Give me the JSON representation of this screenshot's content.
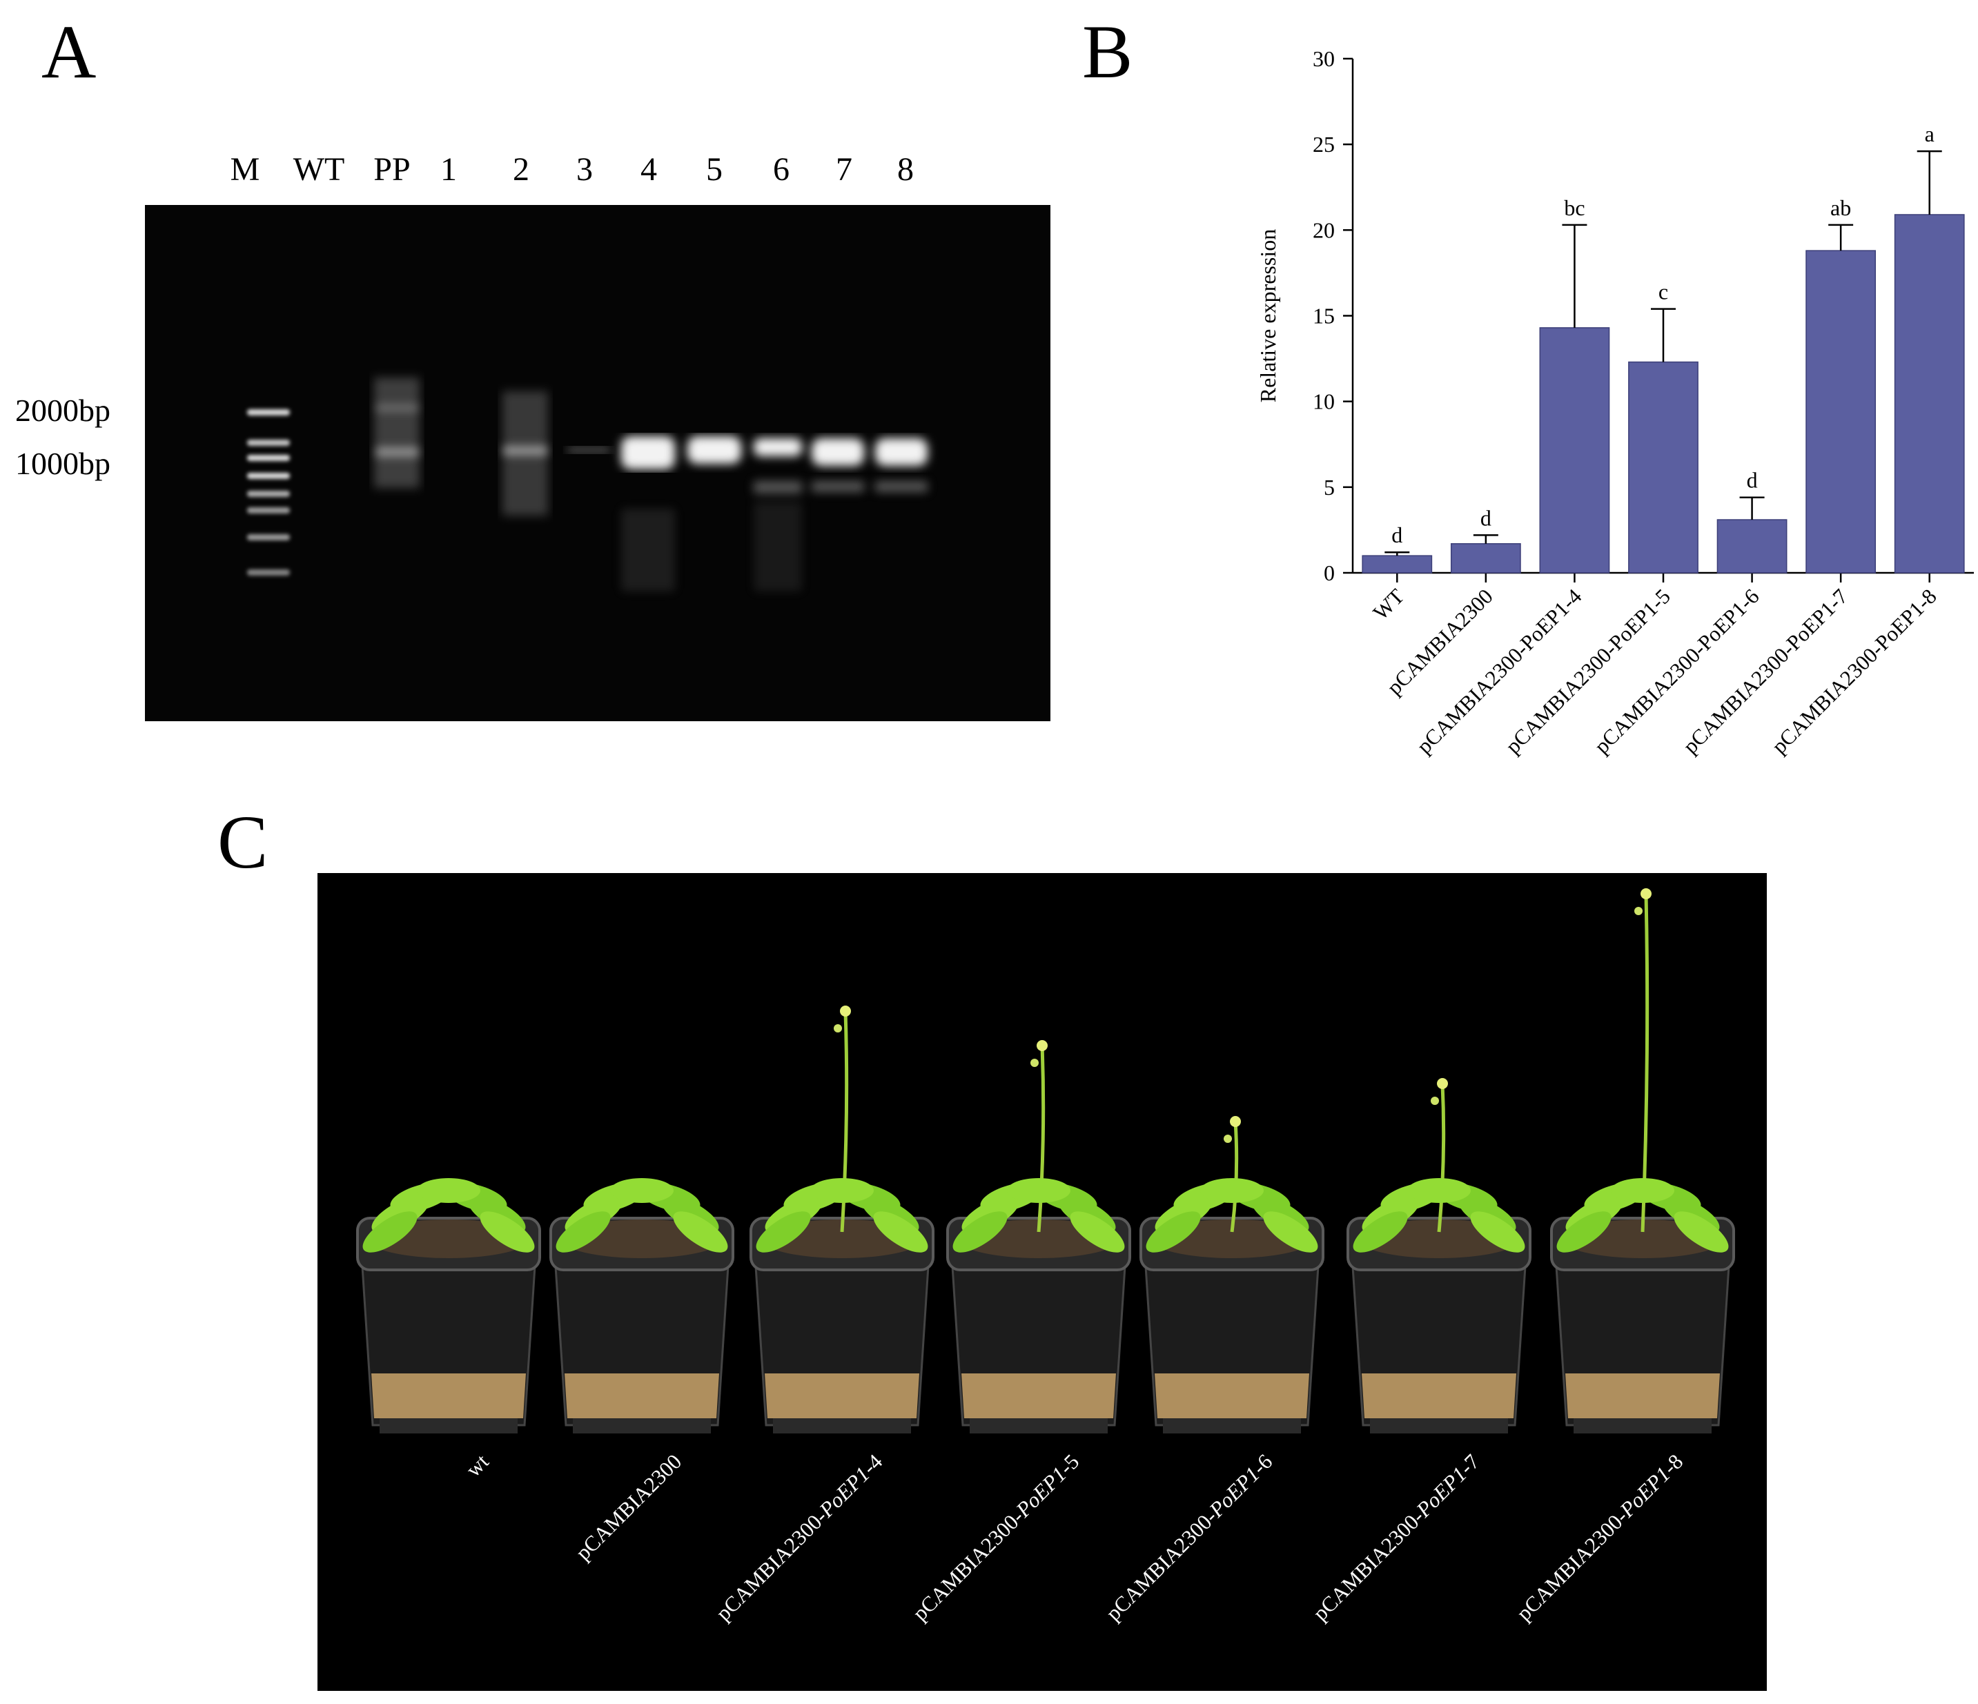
{
  "panels": {
    "a": "A",
    "b": "B",
    "c": "C"
  },
  "gel": {
    "lanes": [
      "M",
      "WT",
      "PP",
      "1",
      "2",
      "3",
      "4",
      "5",
      "6",
      "7",
      "8"
    ],
    "markers": [
      "2000bp",
      "1000bp"
    ]
  },
  "chart_data": {
    "type": "bar",
    "categories": [
      "WT",
      "pCAMBIA2300",
      "pCAMBIA2300-PoEP1-4",
      "pCAMBIA2300-PoEP1-5",
      "pCAMBIA2300-PoEP1-6",
      "pCAMBIA2300-PoEP1-7",
      "pCAMBIA2300-PoEP1-8"
    ],
    "values": [
      1.0,
      1.7,
      14.3,
      12.3,
      3.1,
      18.8,
      20.9
    ],
    "errors": [
      0.2,
      0.5,
      6.0,
      3.1,
      1.3,
      1.5,
      3.7
    ],
    "significance": [
      "d",
      "d",
      "bc",
      "c",
      "d",
      "ab",
      "a"
    ],
    "ylabel": "Relative expression",
    "xlabel": "",
    "ylim": [
      0,
      30
    ],
    "yticks": [
      0,
      5,
      10,
      15,
      20,
      25,
      30
    ],
    "bar_color": "#5b5fa0"
  },
  "photo": {
    "labels": [
      {
        "prefix": "wt",
        "italic": "",
        "suffix": ""
      },
      {
        "prefix": "pCAMBIA2300",
        "italic": "",
        "suffix": ""
      },
      {
        "prefix": "pCAMBIA2300-",
        "italic": "PoEP1",
        "suffix": "-4"
      },
      {
        "prefix": "pCAMBIA2300-",
        "italic": "PoEP1",
        "suffix": "-5"
      },
      {
        "prefix": "pCAMBIA2300-",
        "italic": "PoEP1",
        "suffix": "-6"
      },
      {
        "prefix": "pCAMBIA2300-",
        "italic": "PoEP1",
        "suffix": "-7"
      },
      {
        "prefix": "pCAMBIA2300-",
        "italic": "PoEP1",
        "suffix": "-8"
      }
    ]
  }
}
